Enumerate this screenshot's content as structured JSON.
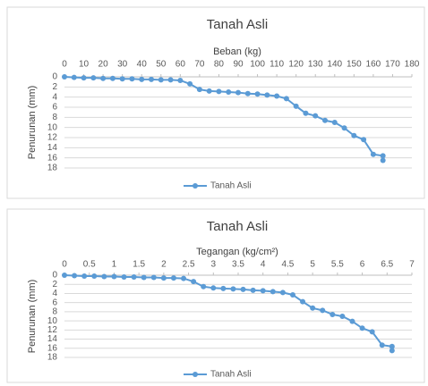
{
  "chart_data": [
    {
      "type": "line",
      "title": "Tanah Asli",
      "x_label": "Beban (kg)",
      "y_label": "Penurunan (mm)",
      "x": [
        0,
        5,
        10,
        15,
        20,
        25,
        30,
        35,
        40,
        45,
        50,
        55,
        60,
        65,
        70,
        75,
        80,
        85,
        90,
        95,
        100,
        105,
        110,
        115,
        120,
        125,
        130,
        135,
        140,
        145,
        150,
        155,
        160,
        165,
        165
      ],
      "series": [
        {
          "name": "Tanah Asli",
          "color": "#5b9bd5",
          "values": [
            0,
            0.1,
            0.2,
            0.2,
            0.3,
            0.3,
            0.4,
            0.4,
            0.5,
            0.5,
            0.6,
            0.6,
            0.7,
            1.4,
            2.5,
            2.8,
            2.9,
            3.0,
            3.1,
            3.3,
            3.4,
            3.6,
            3.8,
            4.3,
            5.8,
            7.2,
            7.7,
            8.6,
            9.0,
            10.1,
            11.6,
            12.4,
            15.3,
            15.6,
            16.5
          ]
        }
      ],
      "xlim": [
        0,
        180
      ],
      "xticks": [
        0,
        10,
        20,
        30,
        40,
        50,
        60,
        70,
        80,
        90,
        100,
        110,
        120,
        130,
        140,
        150,
        160,
        170,
        180
      ],
      "ylim": [
        0,
        18
      ],
      "yticks": [
        0,
        2,
        4,
        6,
        8,
        10,
        12,
        14,
        16,
        18
      ],
      "y_inverted": true,
      "grid": true,
      "legend": "bottom"
    },
    {
      "type": "line",
      "title": "Tanah Asli",
      "x_label": "Tegangan (kg/cm²)",
      "y_label": "Penurunan (mm)",
      "x": [
        0,
        0.2,
        0.4,
        0.6,
        0.8,
        1.0,
        1.2,
        1.4,
        1.6,
        1.8,
        2.0,
        2.2,
        2.4,
        2.6,
        2.8,
        3.0,
        3.2,
        3.4,
        3.6,
        3.8,
        4.0,
        4.2,
        4.4,
        4.6,
        4.8,
        5.0,
        5.2,
        5.4,
        5.6,
        5.8,
        6.0,
        6.2,
        6.4,
        6.6,
        6.6
      ],
      "series": [
        {
          "name": "Tanah Asli",
          "color": "#5b9bd5",
          "values": [
            0,
            0.1,
            0.2,
            0.2,
            0.3,
            0.3,
            0.4,
            0.4,
            0.5,
            0.5,
            0.6,
            0.6,
            0.7,
            1.4,
            2.5,
            2.8,
            2.9,
            3.0,
            3.1,
            3.3,
            3.4,
            3.6,
            3.8,
            4.3,
            5.8,
            7.2,
            7.7,
            8.6,
            9.0,
            10.1,
            11.6,
            12.4,
            15.3,
            15.6,
            16.5
          ]
        }
      ],
      "xlim": [
        0,
        7
      ],
      "xticks": [
        0,
        0.5,
        1,
        1.5,
        2,
        2.5,
        3,
        3.5,
        4,
        4.5,
        5,
        5.5,
        6,
        6.5,
        7
      ],
      "ylim": [
        0,
        18
      ],
      "yticks": [
        0,
        2,
        4,
        6,
        8,
        10,
        12,
        14,
        16,
        18
      ],
      "y_inverted": true,
      "grid": true,
      "legend": "bottom"
    }
  ]
}
